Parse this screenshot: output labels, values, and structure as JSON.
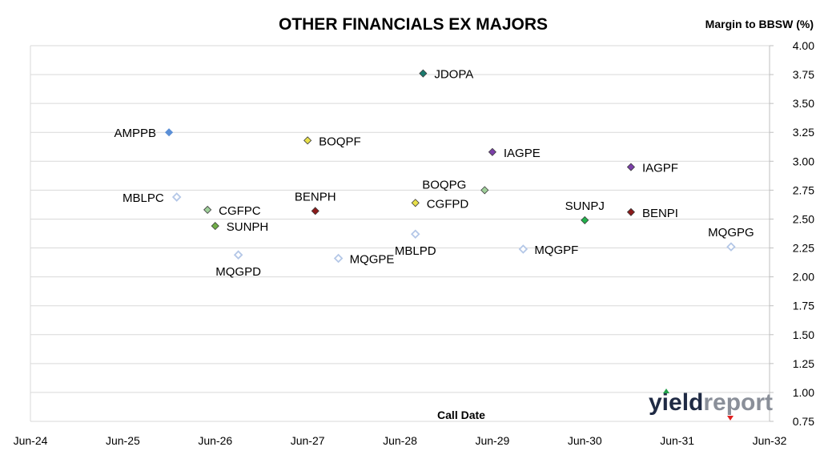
{
  "chart_data": {
    "type": "scatter",
    "title": "OTHER FINANCIALS EX MAJORS",
    "ylabel": "Margin to BBSW (%)",
    "xlabel": "Call Date",
    "x_ticks": [
      "Jun-24",
      "Jun-25",
      "Jun-26",
      "Jun-27",
      "Jun-28",
      "Jun-29",
      "Jun-30",
      "Jun-31",
      "Jun-32"
    ],
    "y_ticks": [
      "0.75",
      "1.00",
      "1.25",
      "1.50",
      "1.75",
      "2.00",
      "2.25",
      "2.50",
      "2.75",
      "3.00",
      "3.25",
      "3.50",
      "3.75",
      "4.00"
    ],
    "xlim": [
      "Jun-24",
      "Jun-32"
    ],
    "ylim": [
      0.75,
      4.0
    ],
    "y_axis_side": "right",
    "grid": "horizontal",
    "points": [
      {
        "label": "JDOPA",
        "x": "Sep-28",
        "y": 3.76,
        "color": "#1a7a6e",
        "filled": true,
        "label_side": "right"
      },
      {
        "label": "AMPPB",
        "x": "Dec-25",
        "y": 3.25,
        "color": "#5b8fd6",
        "filled": true,
        "label_side": "left"
      },
      {
        "label": "BOQPF",
        "x": "Jun-27",
        "y": 3.18,
        "color": "#e8e04a",
        "filled": true,
        "label_side": "right"
      },
      {
        "label": "IAGPE",
        "x": "Jun-29",
        "y": 3.08,
        "color": "#7b3fa8",
        "filled": true,
        "label_side": "right"
      },
      {
        "label": "IAGPF",
        "x": "Dec-30",
        "y": 2.95,
        "color": "#7b3fa8",
        "filled": true,
        "label_side": "right"
      },
      {
        "label": "BOQPG",
        "x": "May-29",
        "y": 2.75,
        "color": "#9fcf9a",
        "filled": true,
        "label_side": "left-above"
      },
      {
        "label": "MBLPC",
        "x": "Jan-26",
        "y": 2.69,
        "color": "#b4c7e7",
        "filled": false,
        "label_side": "left"
      },
      {
        "label": "BENPH",
        "x": "Jul-27",
        "y": 2.57,
        "color": "#8b1a1a",
        "filled": true,
        "label_side": "above"
      },
      {
        "label": "CGFPC",
        "x": "May-26",
        "y": 2.58,
        "color": "#9fcf9a",
        "filled": true,
        "label_side": "right"
      },
      {
        "label": "CGFPD",
        "x": "Aug-28",
        "y": 2.64,
        "color": "#e8e04a",
        "filled": true,
        "label_side": "right"
      },
      {
        "label": "BENPI",
        "x": "Dec-30",
        "y": 2.56,
        "color": "#8b1a1a",
        "filled": true,
        "label_side": "right"
      },
      {
        "label": "SUNPJ",
        "x": "Jun-30",
        "y": 2.49,
        "color": "#22b14c",
        "filled": true,
        "label_side": "above"
      },
      {
        "label": "SUNPH",
        "x": "Jun-26",
        "y": 2.44,
        "color": "#70ad47",
        "filled": true,
        "label_side": "right"
      },
      {
        "label": "MBLPD",
        "x": "Aug-28",
        "y": 2.37,
        "color": "#b4c7e7",
        "filled": false,
        "label_side": "below"
      },
      {
        "label": "MQGPG",
        "x": "Jan-32",
        "y": 2.26,
        "color": "#b4c7e7",
        "filled": false,
        "label_side": "above"
      },
      {
        "label": "MQGPF",
        "x": "Oct-29",
        "y": 2.24,
        "color": "#b4c7e7",
        "filled": false,
        "label_side": "right"
      },
      {
        "label": "MQGPD",
        "x": "Sep-26",
        "y": 2.19,
        "color": "#b4c7e7",
        "filled": false,
        "label_side": "below"
      },
      {
        "label": "MQGPE",
        "x": "Oct-27",
        "y": 2.16,
        "color": "#b4c7e7",
        "filled": false,
        "label_side": "right"
      }
    ]
  },
  "logo": {
    "part1": "yield",
    "part2": "report"
  },
  "colors": {
    "grid": "#d9d9d9",
    "axis": "#d9d9d9",
    "logo_dark": "#1f2a44",
    "logo_grey": "#8a8f99",
    "logo_green": "#22a04a",
    "logo_red": "#e02020"
  }
}
